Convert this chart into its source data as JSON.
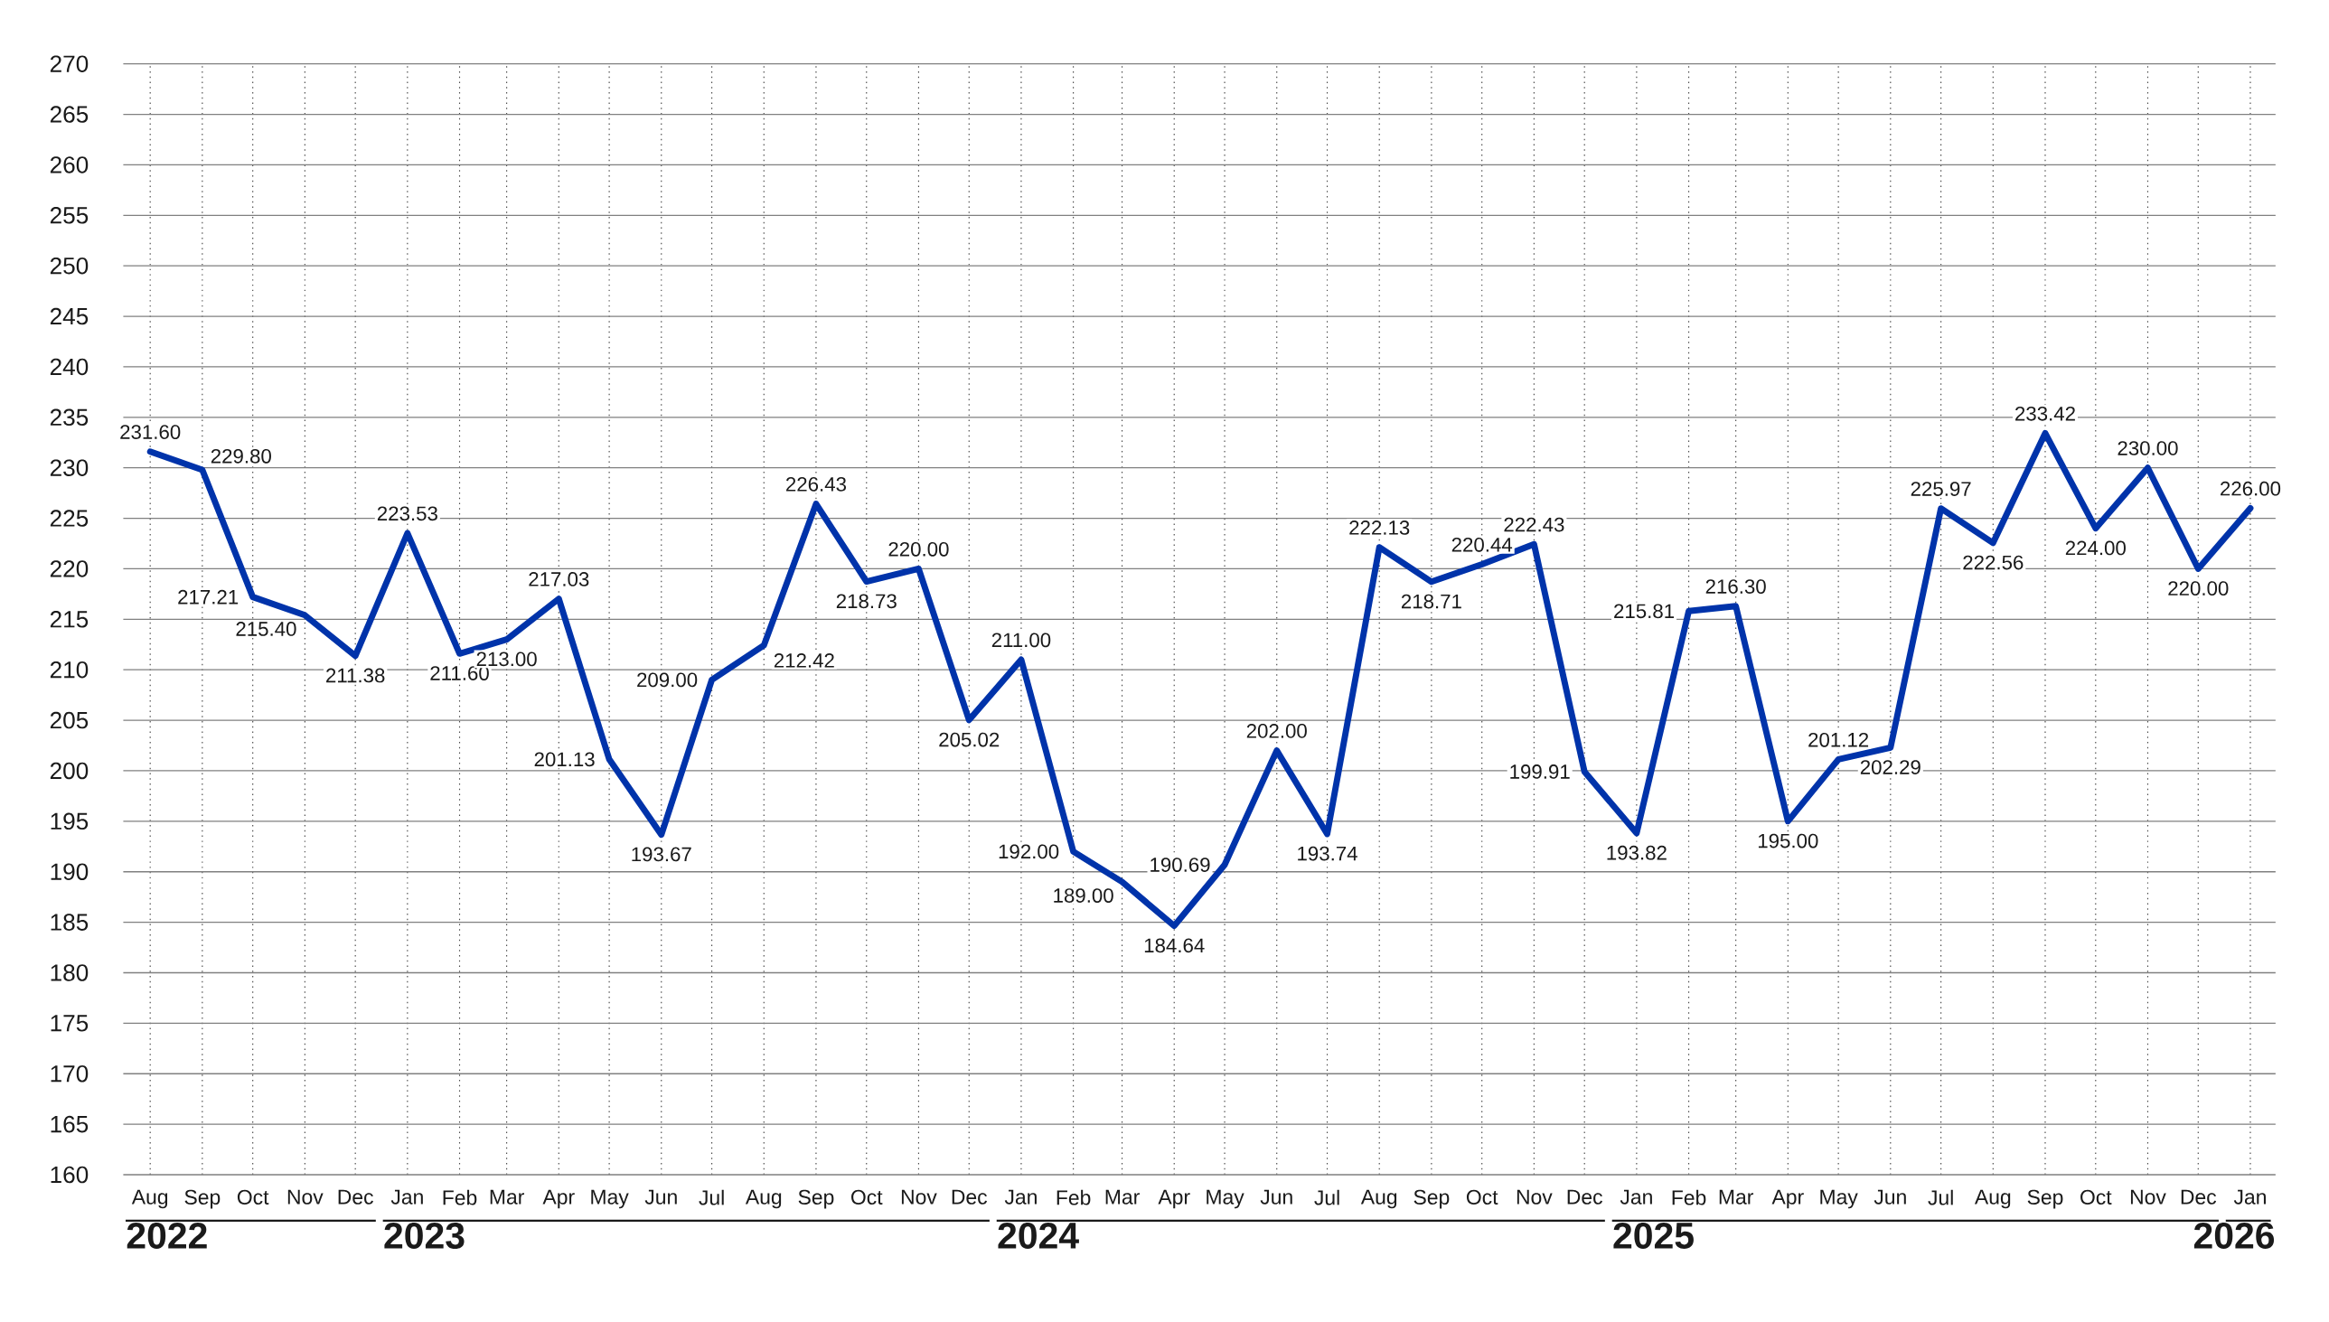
{
  "chart_data": {
    "type": "line",
    "x": [
      "2022-08",
      "2022-09",
      "2022-10",
      "2022-11",
      "2022-12",
      "2023-01",
      "2023-02",
      "2023-03",
      "2023-04",
      "2023-05",
      "2023-06",
      "2023-07",
      "2023-08",
      "2023-09",
      "2023-10",
      "2023-11",
      "2023-12",
      "2024-01",
      "2024-02",
      "2024-03",
      "2024-04",
      "2024-05",
      "2024-06",
      "2024-07",
      "2024-08",
      "2024-09",
      "2024-10",
      "2024-11",
      "2024-12",
      "2025-01",
      "2025-02",
      "2025-03",
      "2025-04",
      "2025-05",
      "2025-06",
      "2025-07",
      "2025-08",
      "2025-09",
      "2025-10",
      "2025-11",
      "2025-12",
      "2026-01"
    ],
    "values": [
      231.6,
      229.8,
      217.21,
      215.4,
      211.38,
      223.53,
      211.6,
      213,
      217.03,
      201.13,
      193.67,
      209,
      212.42,
      226.43,
      218.73,
      220,
      205.02,
      211,
      192,
      189,
      184.64,
      190.69,
      202,
      193.74,
      222.13,
      218.71,
      220.44,
      222.43,
      199.91,
      193.82,
      215.81,
      216.3,
      195,
      201.12,
      202.29,
      225.97,
      222.56,
      233.42,
      224,
      230,
      220,
      226
    ],
    "value_labels": [
      "231.60",
      "229.80",
      "217.21",
      "215.40",
      "211.38",
      "223.53",
      "211.60",
      "213.00",
      "217.03",
      "201.13",
      "193.67",
      "209.00",
      "212.42",
      "226.43",
      "218.73",
      "220.00",
      "205.02",
      "211.00",
      "192.00",
      "189.00",
      "184.64",
      "190.69",
      "202.00",
      "193.74",
      "222.13",
      "218.71",
      "220.44",
      "222.43",
      "199.91",
      "193.82",
      "215.81",
      "216.30",
      "195.00",
      "201.12",
      "202.29",
      "225.97",
      "222.56",
      "233.42",
      "224.00",
      "230.00",
      "220.00",
      "226.00"
    ],
    "color": "#0033aa",
    "line_style": "solid",
    "xlim": [
      "2022-07-16",
      "2026-01-16"
    ],
    "xticks": [
      {
        "value": "2022-08",
        "label": "Aug"
      },
      {
        "value": "2022-09",
        "label": "Sep"
      },
      {
        "value": "2022-10",
        "label": "Oct"
      },
      {
        "value": "2022-11",
        "label": "Nov"
      },
      {
        "value": "2022-12",
        "label": "Dec"
      },
      {
        "value": "2023-01",
        "label": "Jan"
      },
      {
        "value": "2023-02",
        "label": "Feb"
      },
      {
        "value": "2023-03",
        "label": "Mar"
      },
      {
        "value": "2023-04",
        "label": "Apr"
      },
      {
        "value": "2023-05",
        "label": "May"
      },
      {
        "value": "2023-06",
        "label": "Jun"
      },
      {
        "value": "2023-07",
        "label": "Jul"
      },
      {
        "value": "2023-08",
        "label": "Aug"
      },
      {
        "value": "2023-09",
        "label": "Sep"
      },
      {
        "value": "2023-10",
        "label": "Oct"
      },
      {
        "value": "2023-11",
        "label": "Nov"
      },
      {
        "value": "2023-12",
        "label": "Dec"
      },
      {
        "value": "2024-01",
        "label": "Jan"
      },
      {
        "value": "2024-02",
        "label": "Feb"
      },
      {
        "value": "2024-03",
        "label": "Mar"
      },
      {
        "value": "2024-04",
        "label": "Apr"
      },
      {
        "value": "2024-05",
        "label": "May"
      },
      {
        "value": "2024-06",
        "label": "Jun"
      },
      {
        "value": "2024-07",
        "label": "Jul"
      },
      {
        "value": "2024-08",
        "label": "Aug"
      },
      {
        "value": "2024-09",
        "label": "Sep"
      },
      {
        "value": "2024-10",
        "label": "Oct"
      },
      {
        "value": "2024-11",
        "label": "Nov"
      },
      {
        "value": "2024-12",
        "label": "Dec"
      },
      {
        "value": "2025-01",
        "label": "Jan"
      },
      {
        "value": "2025-02",
        "label": "Feb"
      },
      {
        "value": "2025-03",
        "label": "Mar"
      },
      {
        "value": "2025-04",
        "label": "Apr"
      },
      {
        "value": "2025-05",
        "label": "May"
      },
      {
        "value": "2025-06",
        "label": "Jun"
      },
      {
        "value": "2025-07",
        "label": "Jul"
      },
      {
        "value": "2025-08",
        "label": "Aug"
      },
      {
        "value": "2025-09",
        "label": "Sep"
      },
      {
        "value": "2025-10",
        "label": "Oct"
      },
      {
        "value": "2025-11",
        "label": "Nov"
      },
      {
        "value": "2025-12",
        "label": "Dec"
      },
      {
        "value": "2026-01",
        "label": "Jan"
      }
    ],
    "ylim": [
      160,
      270
    ],
    "yticks": [
      160,
      165,
      170,
      175,
      180,
      185,
      190,
      195,
      200,
      205,
      210,
      215,
      220,
      225,
      230,
      235,
      240,
      245,
      250,
      255,
      260,
      265,
      270
    ],
    "grid": true,
    "annotations": [
      "2022",
      "2023",
      "2024",
      "2025",
      "2026"
    ]
  }
}
